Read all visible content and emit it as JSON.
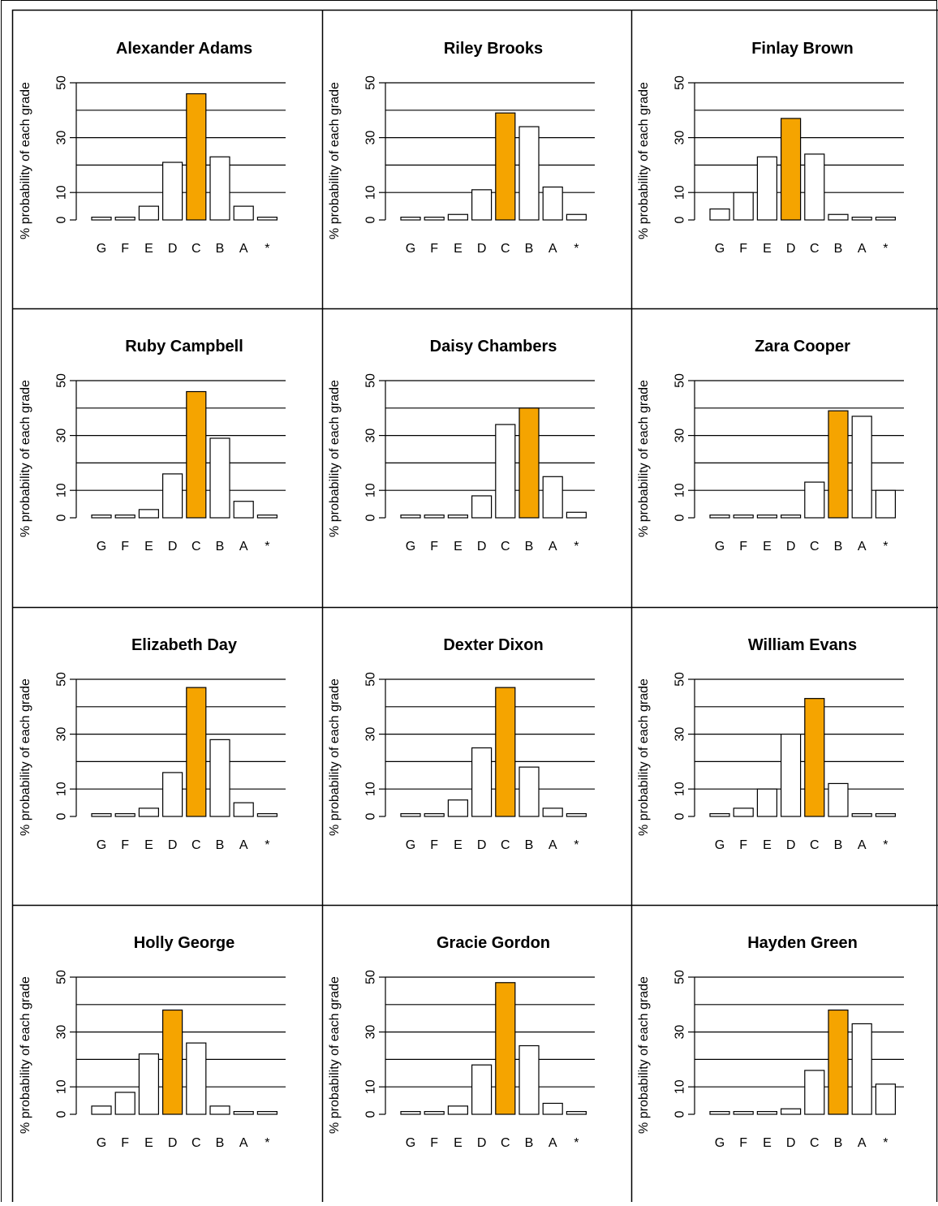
{
  "chart_data": [
    {
      "type": "bar",
      "title": "Alexander  Adams",
      "ylabel": "% probability of each grade",
      "categories": [
        "G",
        "F",
        "E",
        "D",
        "C",
        "B",
        "A",
        "*"
      ],
      "values": [
        1,
        1,
        5,
        21,
        46,
        23,
        5,
        1
      ],
      "highlight_index": 4,
      "yticks": [
        0,
        10,
        30,
        50
      ],
      "ylim": [
        0,
        50
      ],
      "grid": true
    },
    {
      "type": "bar",
      "title": "Riley  Brooks",
      "ylabel": "% probability of each grade",
      "categories": [
        "G",
        "F",
        "E",
        "D",
        "C",
        "B",
        "A",
        "*"
      ],
      "values": [
        1,
        1,
        2,
        11,
        39,
        34,
        12,
        2
      ],
      "highlight_index": 4,
      "yticks": [
        0,
        10,
        30,
        50
      ],
      "ylim": [
        0,
        50
      ],
      "grid": true
    },
    {
      "type": "bar",
      "title": "Finlay  Brown",
      "ylabel": "% probability of each grade",
      "categories": [
        "G",
        "F",
        "E",
        "D",
        "C",
        "B",
        "A",
        "*"
      ],
      "values": [
        4,
        10,
        23,
        37,
        24,
        2,
        1,
        1
      ],
      "highlight_index": 3,
      "yticks": [
        0,
        10,
        30,
        50
      ],
      "ylim": [
        0,
        50
      ],
      "grid": true
    },
    {
      "type": "bar",
      "title": "Ruby  Campbell",
      "ylabel": "% probability of each grade",
      "categories": [
        "G",
        "F",
        "E",
        "D",
        "C",
        "B",
        "A",
        "*"
      ],
      "values": [
        1,
        1,
        3,
        16,
        46,
        29,
        6,
        1
      ],
      "highlight_index": 4,
      "yticks": [
        0,
        10,
        30,
        50
      ],
      "ylim": [
        0,
        50
      ],
      "grid": true
    },
    {
      "type": "bar",
      "title": "Daisy  Chambers",
      "ylabel": "% probability of each grade",
      "categories": [
        "G",
        "F",
        "E",
        "D",
        "C",
        "B",
        "A",
        "*"
      ],
      "values": [
        1,
        1,
        1,
        8,
        34,
        40,
        15,
        2
      ],
      "highlight_index": 5,
      "yticks": [
        0,
        10,
        30,
        50
      ],
      "ylim": [
        0,
        50
      ],
      "grid": true
    },
    {
      "type": "bar",
      "title": "Zara  Cooper",
      "ylabel": "% probability of each grade",
      "categories": [
        "G",
        "F",
        "E",
        "D",
        "C",
        "B",
        "A",
        "*"
      ],
      "values": [
        1,
        1,
        1,
        1,
        13,
        39,
        37,
        10
      ],
      "highlight_index": 5,
      "yticks": [
        0,
        10,
        30,
        50
      ],
      "ylim": [
        0,
        50
      ],
      "grid": true
    },
    {
      "type": "bar",
      "title": "Elizabeth  Day",
      "ylabel": "% probability of each grade",
      "categories": [
        "G",
        "F",
        "E",
        "D",
        "C",
        "B",
        "A",
        "*"
      ],
      "values": [
        1,
        1,
        3,
        16,
        47,
        28,
        5,
        1
      ],
      "highlight_index": 4,
      "yticks": [
        0,
        10,
        30,
        50
      ],
      "ylim": [
        0,
        50
      ],
      "grid": true
    },
    {
      "type": "bar",
      "title": "Dexter  Dixon",
      "ylabel": "% probability of each grade",
      "categories": [
        "G",
        "F",
        "E",
        "D",
        "C",
        "B",
        "A",
        "*"
      ],
      "values": [
        1,
        1,
        6,
        25,
        47,
        18,
        3,
        1
      ],
      "highlight_index": 4,
      "yticks": [
        0,
        10,
        30,
        50
      ],
      "ylim": [
        0,
        50
      ],
      "grid": true
    },
    {
      "type": "bar",
      "title": "William  Evans",
      "ylabel": "% probability of each grade",
      "categories": [
        "G",
        "F",
        "E",
        "D",
        "C",
        "B",
        "A",
        "*"
      ],
      "values": [
        1,
        3,
        10,
        30,
        43,
        12,
        1,
        1
      ],
      "highlight_index": 4,
      "yticks": [
        0,
        10,
        30,
        50
      ],
      "ylim": [
        0,
        50
      ],
      "grid": true
    },
    {
      "type": "bar",
      "title": "Holly  George",
      "ylabel": "% probability of each grade",
      "categories": [
        "G",
        "F",
        "E",
        "D",
        "C",
        "B",
        "A",
        "*"
      ],
      "values": [
        3,
        8,
        22,
        38,
        26,
        3,
        1,
        1
      ],
      "highlight_index": 3,
      "yticks": [
        0,
        10,
        30,
        50
      ],
      "ylim": [
        0,
        50
      ],
      "grid": true
    },
    {
      "type": "bar",
      "title": "Gracie  Gordon",
      "ylabel": "% probability of each grade",
      "categories": [
        "G",
        "F",
        "E",
        "D",
        "C",
        "B",
        "A",
        "*"
      ],
      "values": [
        1,
        1,
        3,
        18,
        48,
        25,
        4,
        1
      ],
      "highlight_index": 4,
      "yticks": [
        0,
        10,
        30,
        50
      ],
      "ylim": [
        0,
        50
      ],
      "grid": true
    },
    {
      "type": "bar",
      "title": "Hayden  Green",
      "ylabel": "% probability of each grade",
      "categories": [
        "G",
        "F",
        "E",
        "D",
        "C",
        "B",
        "A",
        "*"
      ],
      "values": [
        1,
        1,
        1,
        2,
        16,
        38,
        33,
        11
      ],
      "highlight_index": 5,
      "yticks": [
        0,
        10,
        30,
        50
      ],
      "ylim": [
        0,
        50
      ],
      "grid": true
    }
  ],
  "colors": {
    "highlight": "#f5a400",
    "bar": "#ffffff",
    "stroke": "#000000"
  }
}
